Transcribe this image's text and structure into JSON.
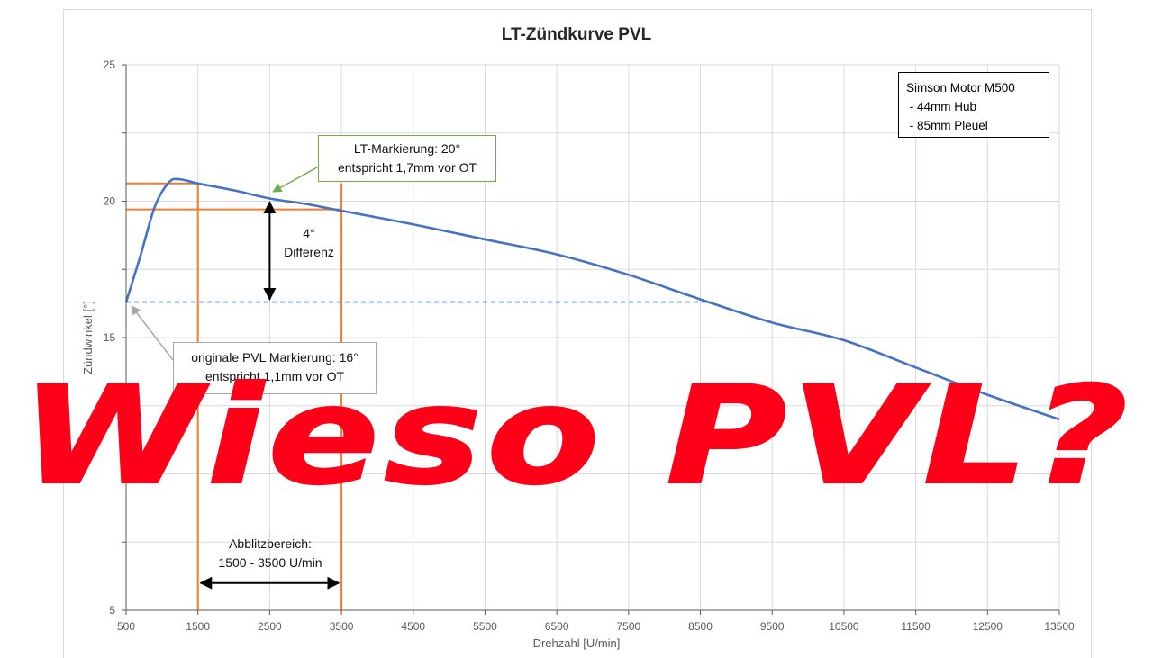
{
  "chart_data": {
    "type": "line",
    "title": "LT-Zündkurve PVL",
    "xlabel": "Drehzahl [U/min]",
    "ylabel": "Zündwinkel [°]",
    "xlim": [
      500,
      13500
    ],
    "ylim": [
      5,
      25
    ],
    "x_ticks": [
      "500",
      "1500",
      "2500",
      "3500",
      "4500",
      "5500",
      "6500",
      "7500",
      "8500",
      "9500",
      "10500",
      "11500",
      "12500",
      "13500"
    ],
    "y_ticks": [
      "25",
      "20",
      "15",
      "5"
    ],
    "grid": true,
    "series": [
      {
        "color": "#4472c4",
        "x": [
          500,
          700,
          900,
          1100,
          1250,
          1500,
          2000,
          2500,
          3000,
          3500,
          4500,
          5500,
          6500,
          7500,
          8500,
          9500,
          10500,
          11500,
          12500,
          13500
        ],
        "y": [
          16.3,
          18.0,
          19.8,
          20.7,
          20.8,
          20.65,
          20.4,
          20.1,
          19.9,
          19.65,
          19.15,
          18.6,
          18.05,
          17.3,
          16.4,
          15.55,
          14.9,
          13.9,
          12.9,
          12.0
        ]
      }
    ],
    "reference_line": {
      "y": 16.3,
      "x_end": 8650,
      "style": "dashed",
      "color": "#4472c4"
    },
    "markers": {
      "x_lines": [
        1500,
        3500
      ],
      "y_lines": [
        20.65,
        19.7
      ],
      "color": "#ed7d31"
    },
    "difference_arrow": {
      "x": 2500,
      "y_from": 20.1,
      "y_to": 16.3
    },
    "range_arrow": {
      "y": 6.0,
      "x_from": 1500,
      "x_to": 3500
    }
  },
  "legend": {
    "lines": [
      "Simson Motor M500",
      " - 44mm Hub",
      " - 85mm Pleuel"
    ]
  },
  "callouts": {
    "lt_line1": "LT-Markierung: 20°",
    "lt_line2": "entspricht 1,7mm vor OT",
    "pvl_line1": "originale PVL Markierung: 16°",
    "pvl_line2": "entspricht 1,1mm vor OT"
  },
  "annotations": {
    "diff_line1": "4°",
    "diff_line2": "Differenz",
    "blitz_line1": "Abblitzbereich:",
    "blitz_line2": "1500 - 3500 U/min"
  },
  "overlay_text": "Wieso PVL?",
  "colors": {
    "curve": "#4472c4",
    "marker": "#ed7d31",
    "overlay": "#ff0018",
    "callout_border": "#70ad47"
  }
}
